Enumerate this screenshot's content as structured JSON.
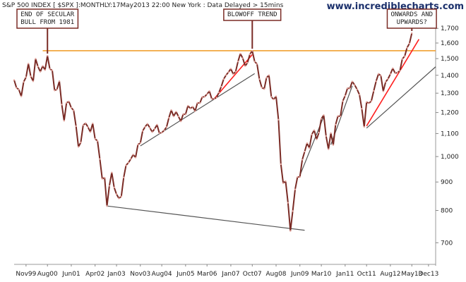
{
  "header": {
    "description": "S&P 500 INDEX [ $SPX ]:MONTHLY:17May2013 22:00 New York : Data Delayed > 15mins",
    "site": "www.incrediblecharts.com"
  },
  "colors": {
    "price": "#7a2b25",
    "price_marker": "#e8a8a0",
    "resistance": "#f0a030",
    "trendline": "#555555",
    "blowoff_trend": "#ff1f1f",
    "annotation_border": "#7a2b25",
    "background": "#ffffff"
  },
  "annotations": [
    {
      "id": "secular",
      "lines": [
        "END OF SECULAR",
        "BULL FROM 1981"
      ],
      "target_date": "2000-08"
    },
    {
      "id": "blowoff",
      "lines": [
        "BLOWOFF TREND"
      ],
      "target_date": "2007-10"
    },
    {
      "id": "onwards",
      "lines": [
        "ONWARDS AND",
        "UPWARDS?"
      ],
      "target_date": "2013-05"
    }
  ],
  "chart_data": {
    "type": "line",
    "scale": "log",
    "y_axis_side": "right",
    "ylim": [
      640,
      1830
    ],
    "xlim": [
      "1999-06",
      "2014-03"
    ],
    "y_ticks": [
      700,
      800,
      900,
      1000,
      1100,
      1200,
      1300,
      1400,
      1500,
      1600,
      1700
    ],
    "y_tick_labels": [
      "700",
      "800",
      "900",
      "1,000",
      "1,100",
      "1,200",
      "1,300",
      "1,400",
      "1,500",
      "1,600",
      "1,700"
    ],
    "x_ticks": [
      {
        "label": "Nov99",
        "date": "1999-11"
      },
      {
        "label": "Aug00",
        "date": "2000-08"
      },
      {
        "label": "Jun01",
        "date": "2001-06"
      },
      {
        "label": "Apr02",
        "date": "2002-04"
      },
      {
        "label": "Jan03",
        "date": "2003-01"
      },
      {
        "label": "Nov03",
        "date": "2003-11"
      },
      {
        "label": "Aug04",
        "date": "2004-08"
      },
      {
        "label": "Jun05",
        "date": "2005-06"
      },
      {
        "label": "Mar06",
        "date": "2006-03"
      },
      {
        "label": "Jan07",
        "date": "2007-01"
      },
      {
        "label": "Oct07",
        "date": "2007-10"
      },
      {
        "label": "Aug08",
        "date": "2008-08"
      },
      {
        "label": "Jun09",
        "date": "2009-06"
      },
      {
        "label": "Mar10",
        "date": "2010-03"
      },
      {
        "label": "Jan11",
        "date": "2011-01"
      },
      {
        "label": "Oct11",
        "date": "2011-10"
      },
      {
        "label": "Aug12",
        "date": "2012-08"
      },
      {
        "label": "May13",
        "date": "2013-05"
      },
      {
        "label": "Dec13",
        "date": "2013-12"
      }
    ],
    "series": [
      {
        "values": [
          [
            "1999-06",
            1373
          ],
          [
            "1999-07",
            1329
          ],
          [
            "1999-08",
            1320
          ],
          [
            "1999-09",
            1283
          ],
          [
            "1999-10",
            1362
          ],
          [
            "1999-11",
            1389
          ],
          [
            "1999-12",
            1469
          ],
          [
            "2000-01",
            1394
          ],
          [
            "2000-02",
            1366
          ],
          [
            "2000-03",
            1499
          ],
          [
            "2000-04",
            1452
          ],
          [
            "2000-05",
            1421
          ],
          [
            "2000-06",
            1455
          ],
          [
            "2000-07",
            1431
          ],
          [
            "2000-08",
            1518
          ],
          [
            "2000-09",
            1437
          ],
          [
            "2000-10",
            1429
          ],
          [
            "2000-11",
            1315
          ],
          [
            "2000-12",
            1320
          ],
          [
            "2001-01",
            1366
          ],
          [
            "2001-02",
            1240
          ],
          [
            "2001-03",
            1160
          ],
          [
            "2001-04",
            1249
          ],
          [
            "2001-05",
            1256
          ],
          [
            "2001-06",
            1224
          ],
          [
            "2001-07",
            1211
          ],
          [
            "2001-08",
            1134
          ],
          [
            "2001-09",
            1041
          ],
          [
            "2001-10",
            1060
          ],
          [
            "2001-11",
            1139
          ],
          [
            "2001-12",
            1148
          ],
          [
            "2002-01",
            1130
          ],
          [
            "2002-02",
            1107
          ],
          [
            "2002-03",
            1147
          ],
          [
            "2002-04",
            1076
          ],
          [
            "2002-05",
            1067
          ],
          [
            "2002-06",
            990
          ],
          [
            "2002-07",
            912
          ],
          [
            "2002-08",
            916
          ],
          [
            "2002-09",
            815
          ],
          [
            "2002-10",
            886
          ],
          [
            "2002-11",
            936
          ],
          [
            "2002-12",
            880
          ],
          [
            "2003-01",
            856
          ],
          [
            "2003-02",
            841
          ],
          [
            "2003-03",
            848
          ],
          [
            "2003-04",
            917
          ],
          [
            "2003-05",
            964
          ],
          [
            "2003-06",
            975
          ],
          [
            "2003-07",
            990
          ],
          [
            "2003-08",
            1008
          ],
          [
            "2003-09",
            996
          ],
          [
            "2003-10",
            1051
          ],
          [
            "2003-11",
            1058
          ],
          [
            "2003-12",
            1112
          ],
          [
            "2004-01",
            1131
          ],
          [
            "2004-02",
            1145
          ],
          [
            "2004-03",
            1126
          ],
          [
            "2004-04",
            1107
          ],
          [
            "2004-05",
            1121
          ],
          [
            "2004-06",
            1141
          ],
          [
            "2004-07",
            1102
          ],
          [
            "2004-08",
            1104
          ],
          [
            "2004-09",
            1115
          ],
          [
            "2004-10",
            1130
          ],
          [
            "2004-11",
            1174
          ],
          [
            "2004-12",
            1212
          ],
          [
            "2005-01",
            1181
          ],
          [
            "2005-02",
            1204
          ],
          [
            "2005-03",
            1181
          ],
          [
            "2005-04",
            1157
          ],
          [
            "2005-05",
            1192
          ],
          [
            "2005-06",
            1191
          ],
          [
            "2005-07",
            1234
          ],
          [
            "2005-08",
            1220
          ],
          [
            "2005-09",
            1229
          ],
          [
            "2005-10",
            1207
          ],
          [
            "2005-11",
            1249
          ],
          [
            "2005-12",
            1248
          ],
          [
            "2006-01",
            1280
          ],
          [
            "2006-02",
            1281
          ],
          [
            "2006-03",
            1295
          ],
          [
            "2006-04",
            1311
          ],
          [
            "2006-05",
            1270
          ],
          [
            "2006-06",
            1270
          ],
          [
            "2006-07",
            1277
          ],
          [
            "2006-08",
            1304
          ],
          [
            "2006-09",
            1336
          ],
          [
            "2006-10",
            1378
          ],
          [
            "2006-11",
            1401
          ],
          [
            "2006-12",
            1418
          ],
          [
            "2007-01",
            1438
          ],
          [
            "2007-02",
            1407
          ],
          [
            "2007-03",
            1421
          ],
          [
            "2007-04",
            1482
          ],
          [
            "2007-05",
            1531
          ],
          [
            "2007-06",
            1503
          ],
          [
            "2007-07",
            1455
          ],
          [
            "2007-08",
            1474
          ],
          [
            "2007-09",
            1527
          ],
          [
            "2007-10",
            1549
          ],
          [
            "2007-11",
            1481
          ],
          [
            "2007-12",
            1468
          ],
          [
            "2008-01",
            1378
          ],
          [
            "2008-02",
            1331
          ],
          [
            "2008-03",
            1323
          ],
          [
            "2008-04",
            1386
          ],
          [
            "2008-05",
            1400
          ],
          [
            "2008-06",
            1280
          ],
          [
            "2008-07",
            1267
          ],
          [
            "2008-08",
            1283
          ],
          [
            "2008-09",
            1165
          ],
          [
            "2008-10",
            969
          ],
          [
            "2008-11",
            896
          ],
          [
            "2008-12",
            903
          ],
          [
            "2009-01",
            826
          ],
          [
            "2009-02",
            735
          ],
          [
            "2009-03",
            798
          ],
          [
            "2009-04",
            873
          ],
          [
            "2009-05",
            919
          ],
          [
            "2009-06",
            919
          ],
          [
            "2009-07",
            987
          ],
          [
            "2009-08",
            1021
          ],
          [
            "2009-09",
            1057
          ],
          [
            "2009-10",
            1036
          ],
          [
            "2009-11",
            1096
          ],
          [
            "2009-12",
            1115
          ],
          [
            "2010-01",
            1074
          ],
          [
            "2010-02",
            1104
          ],
          [
            "2010-03",
            1169
          ],
          [
            "2010-04",
            1187
          ],
          [
            "2010-05",
            1089
          ],
          [
            "2010-06",
            1031
          ],
          [
            "2010-07",
            1102
          ],
          [
            "2010-08",
            1049
          ],
          [
            "2010-09",
            1141
          ],
          [
            "2010-10",
            1183
          ],
          [
            "2010-11",
            1181
          ],
          [
            "2010-12",
            1258
          ],
          [
            "2011-01",
            1286
          ],
          [
            "2011-02",
            1327
          ],
          [
            "2011-03",
            1326
          ],
          [
            "2011-04",
            1364
          ],
          [
            "2011-05",
            1345
          ],
          [
            "2011-06",
            1321
          ],
          [
            "2011-07",
            1292
          ],
          [
            "2011-08",
            1219
          ],
          [
            "2011-09",
            1131
          ],
          [
            "2011-10",
            1253
          ],
          [
            "2011-11",
            1247
          ],
          [
            "2011-12",
            1258
          ],
          [
            "2012-01",
            1312
          ],
          [
            "2012-02",
            1366
          ],
          [
            "2012-03",
            1408
          ],
          [
            "2012-04",
            1398
          ],
          [
            "2012-05",
            1310
          ],
          [
            "2012-06",
            1362
          ],
          [
            "2012-07",
            1379
          ],
          [
            "2012-08",
            1407
          ],
          [
            "2012-09",
            1441
          ],
          [
            "2012-10",
            1412
          ],
          [
            "2012-11",
            1416
          ],
          [
            "2012-12",
            1426
          ],
          [
            "2013-01",
            1498
          ],
          [
            "2013-02",
            1515
          ],
          [
            "2013-03",
            1569
          ],
          [
            "2013-04",
            1597
          ],
          [
            "2013-05",
            1667
          ]
        ]
      }
    ],
    "horizontal_lines": [
      {
        "y": 1550,
        "x_from": "2000-06",
        "x_to": "2014-03",
        "style": "resistance"
      }
    ],
    "trendlines": [
      {
        "from": [
          "2002-09",
          815
        ],
        "to": [
          "2009-08",
          737
        ],
        "style": "trendline"
      },
      {
        "from": [
          "2003-11",
          1045
        ],
        "to": [
          "2007-11",
          1410
        ],
        "style": "trendline"
      },
      {
        "from": [
          "2006-06",
          1270
        ],
        "to": [
          "2007-10",
          1525
        ],
        "style": "blowoff_trend"
      },
      {
        "from": [
          "2009-06",
          925
        ],
        "to": [
          "2010-04",
          1180
        ],
        "style": "trendline"
      },
      {
        "from": [
          "2010-07",
          1050
        ],
        "to": [
          "2011-04",
          1340
        ],
        "style": "trendline"
      },
      {
        "from": [
          "2011-10",
          1125
        ],
        "to": [
          "2014-03",
          1450
        ],
        "style": "trendline"
      },
      {
        "from": [
          "2011-10",
          1135
        ],
        "to": [
          "2013-08",
          1625
        ],
        "style": "blowoff_trend"
      }
    ]
  }
}
